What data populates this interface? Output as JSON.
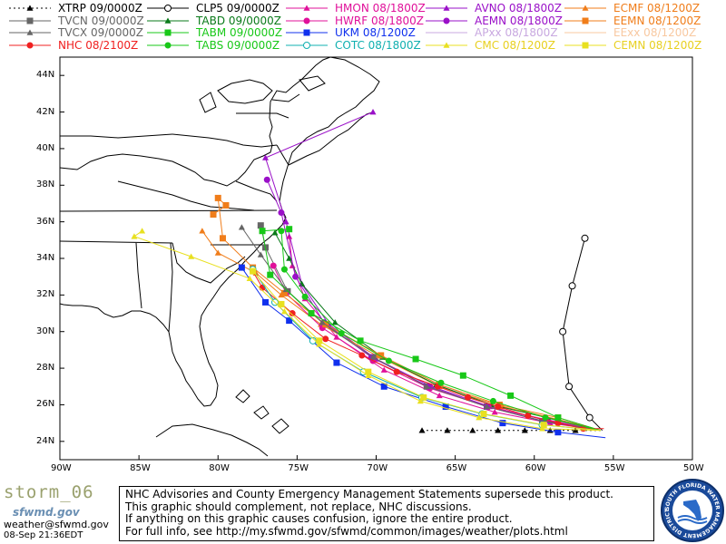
{
  "legend": [
    {
      "label": "XTRP 09/0000Z",
      "color": "#000000",
      "marker": "triangle",
      "dashed": true
    },
    {
      "label": "CLP5 09/0000Z",
      "color": "#000000",
      "marker": "circle-open",
      "dashed": false
    },
    {
      "label": "HMON 08/1800Z",
      "color": "#e0109a",
      "marker": "triangle",
      "dashed": false
    },
    {
      "label": "AVNO 08/1800Z",
      "color": "#9a10c8",
      "marker": "triangle",
      "dashed": false
    },
    {
      "label": "ECMF 08/1200Z",
      "color": "#f07d1a",
      "marker": "triangle",
      "dashed": false
    },
    {
      "label": "TVCN 09/0000Z",
      "color": "#666666",
      "marker": "square",
      "dashed": false
    },
    {
      "label": "TABD 09/0000Z",
      "color": "#0a7a1a",
      "marker": "triangle",
      "dashed": false
    },
    {
      "label": "HWRF 08/1800Z",
      "color": "#e0109a",
      "marker": "circle",
      "dashed": false
    },
    {
      "label": "AEMN 08/1800Z",
      "color": "#9a10c8",
      "marker": "circle",
      "dashed": false
    },
    {
      "label": "EEMN 08/1200Z",
      "color": "#f07d1a",
      "marker": "square",
      "dashed": false
    },
    {
      "label": "TVCX 09/0000Z",
      "color": "#666666",
      "marker": "triangle",
      "dashed": false
    },
    {
      "label": "TABM 09/0000Z",
      "color": "#18c818",
      "marker": "square",
      "dashed": false
    },
    {
      "label": "UKM 08/1200Z",
      "color": "#1030ee",
      "marker": "square",
      "dashed": false
    },
    {
      "label": "APxx 08/1800Z",
      "color": "#c8a8e0",
      "marker": "line",
      "dashed": false
    },
    {
      "label": "EExx 08/1200Z",
      "color": "#f8c8a0",
      "marker": "line",
      "dashed": false
    },
    {
      "label": "NHC 08/2100Z",
      "color": "#f02020",
      "marker": "circle",
      "dashed": false
    },
    {
      "label": "TABS 09/0000Z",
      "color": "#18c818",
      "marker": "circle",
      "dashed": false
    },
    {
      "label": "COTC 08/1800Z",
      "color": "#10b0b0",
      "marker": "circle-open",
      "dashed": false
    },
    {
      "label": "CMC 08/1200Z",
      "color": "#e8e020",
      "marker": "triangle",
      "dashed": false
    },
    {
      "label": "CEMN 08/1200Z",
      "color": "#e8e020",
      "marker": "square",
      "dashed": false
    }
  ],
  "axes": {
    "lat_labels": [
      "44N",
      "42N",
      "40N",
      "38N",
      "36N",
      "34N",
      "32N",
      "30N",
      "28N",
      "26N",
      "24N"
    ],
    "lon_labels": [
      "90W",
      "85W",
      "80W",
      "75W",
      "70W",
      "65W",
      "60W",
      "55W",
      "50W"
    ]
  },
  "tracks": [
    {
      "name": "XTRP",
      "color": "#000000",
      "marker": "triangle",
      "dashed": true,
      "points": [
        [
          -55.8,
          24.6
        ],
        [
          -57.4,
          24.6
        ],
        [
          -59,
          24.6
        ],
        [
          -60.6,
          24.6
        ],
        [
          -62.3,
          24.6
        ],
        [
          -63.9,
          24.6
        ],
        [
          -65.5,
          24.6
        ],
        [
          -67.1,
          24.6
        ]
      ]
    },
    {
      "name": "CLP5",
      "color": "#000000",
      "marker": "circle-open",
      "dashed": false,
      "points": [
        [
          -55.7,
          24.6
        ],
        [
          -56.5,
          25.3
        ],
        [
          -57.8,
          27
        ],
        [
          -58.2,
          30
        ],
        [
          -57.6,
          32.5
        ],
        [
          -56.8,
          35.1
        ]
      ]
    },
    {
      "name": "HMON",
      "color": "#e0109a",
      "marker": "triangle",
      "dashed": false,
      "points": [
        [
          -55.8,
          24.6
        ],
        [
          -59,
          25
        ],
        [
          -62.5,
          25.6
        ],
        [
          -66,
          26.5
        ],
        [
          -69.5,
          27.9
        ],
        [
          -72.5,
          29.7
        ],
        [
          -74.5,
          31.8
        ],
        [
          -75.3,
          33.6
        ],
        [
          -75.5,
          35.2
        ]
      ]
    },
    {
      "name": "AVNO",
      "color": "#9a10c8",
      "marker": "triangle",
      "dashed": false,
      "points": [
        [
          -55.8,
          24.6
        ],
        [
          -59,
          25.1
        ],
        [
          -62.8,
          25.9
        ],
        [
          -66.5,
          27
        ],
        [
          -70,
          28.5
        ],
        [
          -73,
          30.4
        ],
        [
          -74.7,
          32.6
        ],
        [
          -75.7,
          36
        ],
        [
          -77,
          39.5
        ],
        [
          -70.2,
          42
        ]
      ]
    },
    {
      "name": "ECMF",
      "color": "#f07d1a",
      "marker": "triangle",
      "dashed": false,
      "points": [
        [
          -55.8,
          24.6
        ],
        [
          -58.5,
          25.2
        ],
        [
          -62,
          25.9
        ],
        [
          -66,
          27
        ],
        [
          -70,
          28.7
        ],
        [
          -73.5,
          30.4
        ],
        [
          -76,
          32
        ],
        [
          -77.6,
          33.2
        ],
        [
          -80,
          34.3
        ],
        [
          -81,
          35.5
        ]
      ]
    },
    {
      "name": "TVCN",
      "color": "#666666",
      "marker": "square",
      "dashed": false,
      "points": [
        [
          -55.8,
          24.6
        ],
        [
          -59.5,
          25.1
        ],
        [
          -63,
          25.9
        ],
        [
          -66.8,
          27
        ],
        [
          -70.2,
          28.6
        ],
        [
          -73.3,
          30.4
        ],
        [
          -75.6,
          32.2
        ],
        [
          -77,
          34.6
        ],
        [
          -77.3,
          35.8
        ]
      ]
    },
    {
      "name": "TABD",
      "color": "#0a7a1a",
      "marker": "triangle",
      "dashed": false,
      "points": [
        [
          -55.8,
          24.6
        ],
        [
          -59.2,
          25.3
        ],
        [
          -62.7,
          26
        ],
        [
          -66.2,
          27.1
        ],
        [
          -69.6,
          28.6
        ],
        [
          -72.6,
          30.5
        ],
        [
          -74.7,
          32.6
        ],
        [
          -75.5,
          34
        ],
        [
          -76.4,
          35.4
        ]
      ]
    },
    {
      "name": "HWRF",
      "color": "#e0109a",
      "marker": "circle",
      "dashed": false,
      "points": [
        [
          -55.8,
          24.6
        ],
        [
          -59.3,
          25.2
        ],
        [
          -62.9,
          25.9
        ],
        [
          -66.6,
          26.9
        ],
        [
          -70.2,
          28.4
        ],
        [
          -73.4,
          30.2
        ],
        [
          -75.7,
          32.1
        ],
        [
          -76.5,
          33.6
        ]
      ]
    },
    {
      "name": "AEMN",
      "color": "#9a10c8",
      "marker": "circle",
      "dashed": false,
      "points": [
        [
          -55.8,
          24.6
        ],
        [
          -59.4,
          25.1
        ],
        [
          -63,
          25.9
        ],
        [
          -66.7,
          27
        ],
        [
          -70.3,
          28.6
        ],
        [
          -73.3,
          30.5
        ],
        [
          -75.1,
          33
        ],
        [
          -76,
          36.5
        ],
        [
          -76.9,
          38.3
        ]
      ]
    },
    {
      "name": "EEMN",
      "color": "#f07d1a",
      "marker": "square",
      "dashed": false,
      "points": [
        [
          -55.8,
          24.6
        ],
        [
          -58.5,
          25.3
        ],
        [
          -62.2,
          26
        ],
        [
          -66,
          27.1
        ],
        [
          -69.7,
          28.7
        ],
        [
          -73.2,
          30.4
        ],
        [
          -75.8,
          32.1
        ],
        [
          -77.8,
          33.5
        ],
        [
          -79.7,
          35.1
        ],
        [
          -80,
          37.3
        ],
        [
          -79.5,
          36.9
        ],
        [
          -80.3,
          36.4
        ]
      ]
    },
    {
      "name": "TVCX",
      "color": "#666666",
      "marker": "triangle",
      "dashed": false,
      "points": [
        [
          -55.8,
          24.6
        ],
        [
          -59.4,
          25.1
        ],
        [
          -63,
          25.9
        ],
        [
          -66.8,
          27
        ],
        [
          -70.2,
          28.6
        ],
        [
          -73.4,
          30.5
        ],
        [
          -75.7,
          32.3
        ],
        [
          -77.3,
          34.2
        ],
        [
          -78.5,
          35.7
        ]
      ]
    },
    {
      "name": "TABM",
      "color": "#18c818",
      "marker": "square",
      "dashed": false,
      "points": [
        [
          -55.8,
          24.6
        ],
        [
          -58.5,
          25.3
        ],
        [
          -61.5,
          26.5
        ],
        [
          -64.5,
          27.6
        ],
        [
          -67.5,
          28.5
        ],
        [
          -71,
          29.5
        ],
        [
          -74.1,
          31
        ],
        [
          -76.7,
          33.1
        ],
        [
          -77.2,
          35.5
        ],
        [
          -75.5,
          35.6
        ]
      ]
    },
    {
      "name": "UKM",
      "color": "#1030ee",
      "marker": "square",
      "dashed": false,
      "points": [
        [
          -55.5,
          24.2
        ],
        [
          -58.5,
          24.5
        ],
        [
          -62,
          25
        ],
        [
          -65.6,
          25.9
        ],
        [
          -69.5,
          27
        ],
        [
          -72.5,
          28.3
        ],
        [
          -75.5,
          30.6
        ],
        [
          -77,
          31.6
        ],
        [
          -78.5,
          33.5
        ]
      ]
    },
    {
      "name": "NHC",
      "color": "#f02020",
      "marker": "circle",
      "dashed": false,
      "points": [
        [
          -55.6,
          24.7
        ],
        [
          -56.9,
          24.7
        ],
        [
          -58.5,
          25
        ],
        [
          -60.4,
          25.4
        ],
        [
          -62.3,
          25.9
        ],
        [
          -64.2,
          26.4
        ],
        [
          -66.1,
          27
        ],
        [
          -68.7,
          27.8
        ],
        [
          -70.9,
          28.7
        ],
        [
          -73.2,
          29.6
        ],
        [
          -75.3,
          31
        ],
        [
          -77.2,
          32.4
        ],
        [
          -77.8,
          33.3
        ]
      ]
    },
    {
      "name": "TABS",
      "color": "#18c818",
      "marker": "circle",
      "dashed": false,
      "points": [
        [
          -55.8,
          24.6
        ],
        [
          -59.3,
          25.3
        ],
        [
          -62.6,
          26.2
        ],
        [
          -65.9,
          27.2
        ],
        [
          -69.2,
          28.4
        ],
        [
          -72.2,
          29.9
        ],
        [
          -74.5,
          31.9
        ],
        [
          -75.8,
          33.4
        ],
        [
          -76,
          35.5
        ]
      ]
    },
    {
      "name": "COTC",
      "color": "#10b0b0",
      "marker": "circle-open",
      "dashed": false,
      "points": [
        [
          -55.8,
          24.6
        ],
        [
          -59.5,
          24.9
        ],
        [
          -63.3,
          25.5
        ],
        [
          -67.1,
          26.4
        ],
        [
          -70.8,
          27.8
        ],
        [
          -74,
          29.5
        ],
        [
          -76.4,
          31.6
        ],
        [
          -77.8,
          33.4
        ]
      ]
    },
    {
      "name": "CMC",
      "color": "#e8e020",
      "marker": "triangle",
      "dashed": false,
      "points": [
        [
          -55.8,
          24.6
        ],
        [
          -59.5,
          24.7
        ],
        [
          -63.5,
          25.3
        ],
        [
          -67.2,
          26.2
        ],
        [
          -70.5,
          27.6
        ],
        [
          -73.6,
          29.3
        ],
        [
          -75.8,
          31.1
        ],
        [
          -78,
          32.9
        ],
        [
          -81.7,
          34.1
        ],
        [
          -85.3,
          35.2
        ],
        [
          -84.8,
          35.5
        ]
      ]
    },
    {
      "name": "CEMN",
      "color": "#e8e020",
      "marker": "square",
      "dashed": false,
      "points": [
        [
          -55.8,
          24.6
        ],
        [
          -59.4,
          24.9
        ],
        [
          -63.2,
          25.5
        ],
        [
          -67,
          26.4
        ],
        [
          -70.5,
          27.8
        ],
        [
          -73.6,
          29.5
        ],
        [
          -76,
          31.5
        ],
        [
          -77.8,
          33.3
        ]
      ]
    }
  ],
  "footer": {
    "storm_name": "storm_06",
    "site_logo": "sfwmd.gov",
    "email": "weather@sfwmd.gov",
    "timestamp": "08-Sep 21:36EDT",
    "disclaimer": [
      "NHC Advisories and County Emergency Management Statements supersede this product.",
      "This graphic should complement, not replace, NHC discussions.",
      "If anything on this graphic causes confusion, ignore the entire product.",
      "For full info, see  http://my.sfwmd.gov/sfwmd/common/images/weather/plots.html"
    ],
    "seal_text": "SOUTH FLORIDA WATER MANAGEMENT DISTRICT"
  },
  "colors": {
    "land_border": "#000000",
    "background": "#ffffff"
  }
}
